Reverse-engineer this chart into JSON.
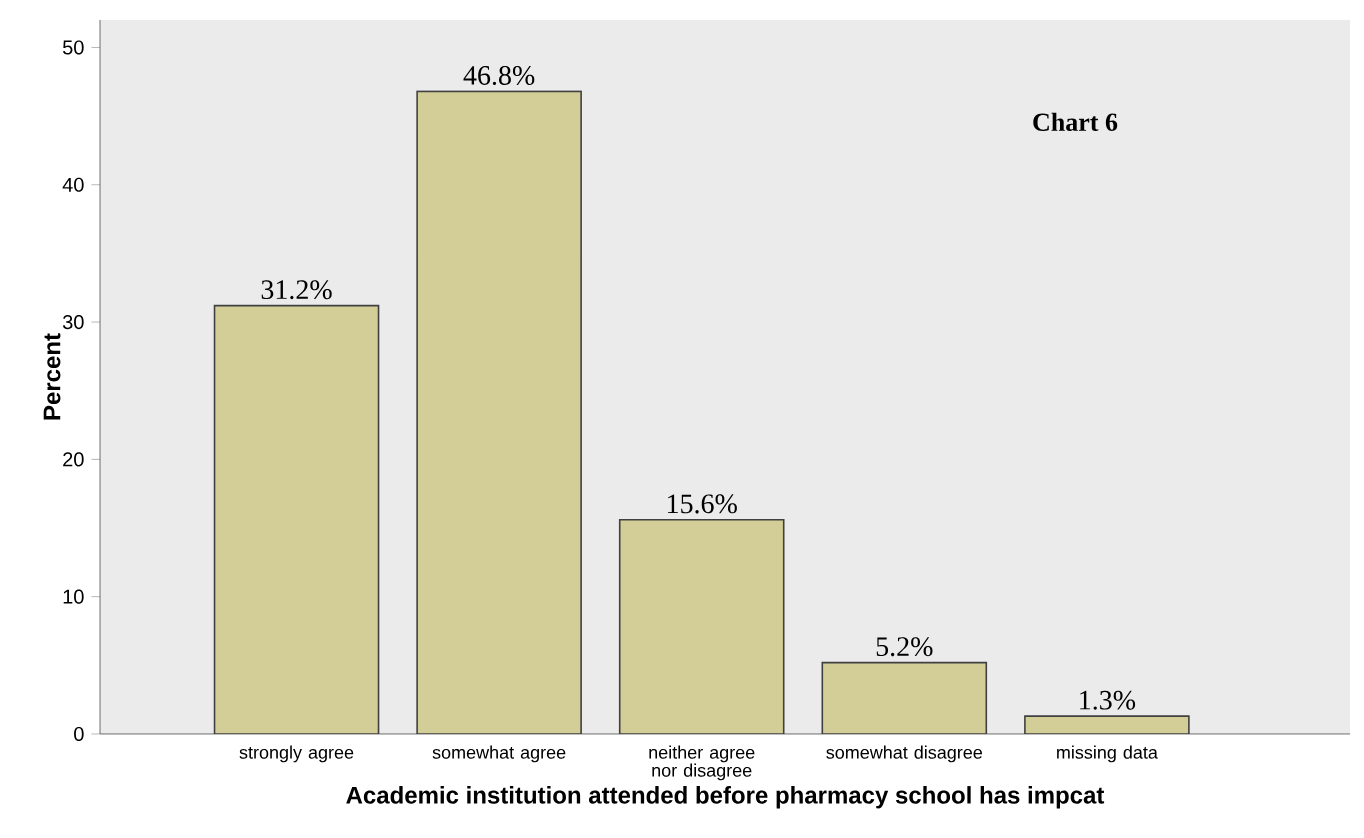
{
  "chart_data": {
    "type": "bar",
    "annotations": [
      "Chart 6"
    ],
    "xlabel": "Academic institution attended before pharmacy school has impcat",
    "ylabel": "Percent",
    "categories": [
      "strongly agree",
      "somewhat agree",
      "neither agree nor disagree",
      "somewhat disagree",
      "missing data"
    ],
    "values": [
      31.2,
      46.8,
      15.6,
      5.2,
      1.3
    ],
    "value_labels": [
      "31.2%",
      "46.8%",
      "15.6%",
      "5.2%",
      "1.3%"
    ],
    "color": "#d3ce97",
    "ylim": [
      0,
      52
    ],
    "yticks": [
      0,
      10,
      20,
      30,
      40,
      50
    ],
    "grid": false
  }
}
